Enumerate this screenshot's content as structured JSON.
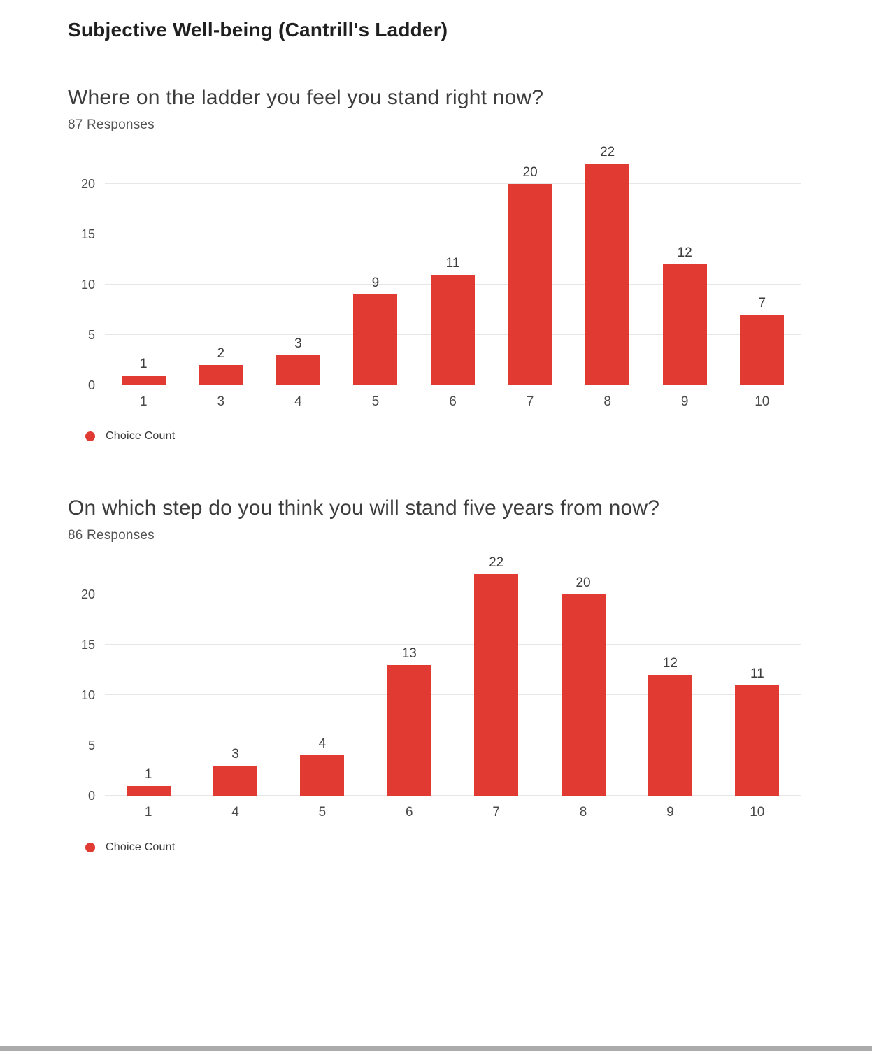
{
  "page_title": "Subjective Well-being (Cantrill's Ladder)",
  "colors": {
    "bar_red": "#e03a33",
    "gridline": "#e7e7e7",
    "axis_text": "#4a4a4a",
    "scrollbar_thumb": "#ababab"
  },
  "chart_data": [
    {
      "type": "bar",
      "title": "Where on the ladder you feel you stand right now?",
      "responses_label": "87 Responses",
      "categories": [
        "1",
        "3",
        "4",
        "5",
        "6",
        "7",
        "8",
        "9",
        "10"
      ],
      "values": [
        1,
        2,
        3,
        9,
        11,
        20,
        22,
        12,
        7
      ],
      "yticks": [
        0,
        5,
        10,
        15,
        20
      ],
      "ylim": [
        0,
        25
      ],
      "grid": true,
      "bar_color": "#e03a33",
      "legend": [
        {
          "label": "Choice Count",
          "color": "#e03a33"
        }
      ],
      "legend_position": "bottom-left"
    },
    {
      "type": "bar",
      "title": "On which step do you think you will stand five years from now?",
      "responses_label": "86 Responses",
      "categories": [
        "1",
        "4",
        "5",
        "6",
        "7",
        "8",
        "9",
        "10"
      ],
      "values": [
        1,
        3,
        4,
        13,
        22,
        20,
        12,
        11
      ],
      "yticks": [
        0,
        5,
        10,
        15,
        20
      ],
      "ylim": [
        0,
        25
      ],
      "grid": true,
      "bar_color": "#e03a33",
      "legend": [
        {
          "label": "Choice Count",
          "color": "#e03a33"
        }
      ],
      "legend_position": "bottom-left"
    }
  ]
}
